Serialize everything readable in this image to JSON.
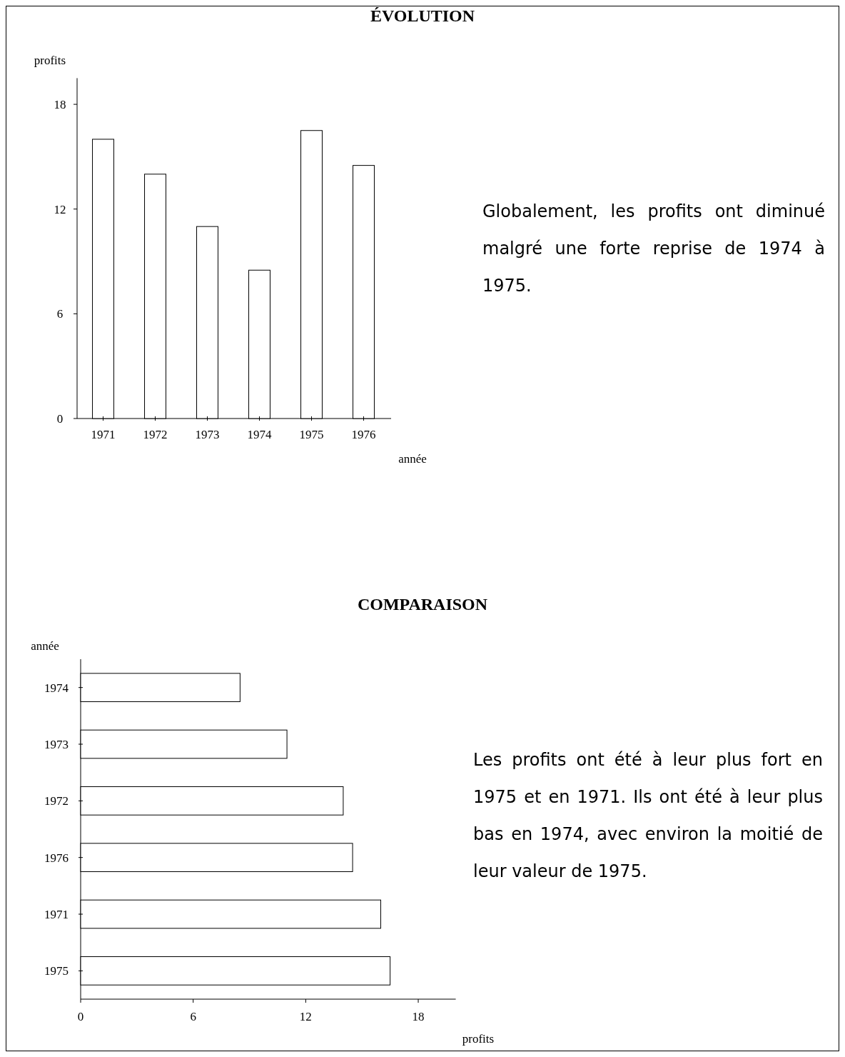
{
  "chart_data": [
    {
      "type": "bar",
      "title": "ÉVOLUTION",
      "xlabel": "année",
      "ylabel": "profits",
      "categories": [
        "1971",
        "1972",
        "1973",
        "1974",
        "1975",
        "1976"
      ],
      "values": [
        16,
        14,
        11,
        8.5,
        16.5,
        14.5
      ],
      "color": "#ffffff",
      "ylim": [
        0,
        19.5
      ],
      "yticks": [
        0,
        6,
        12,
        18
      ],
      "annotations": [
        "Globalement, les profits ont diminué malgré une forte reprise de 1974 à 1975."
      ]
    },
    {
      "type": "bar",
      "orientation": "horizontal",
      "title": "COMPARAISON",
      "xlabel": "profits",
      "ylabel": "année",
      "categories": [
        "1974",
        "1973",
        "1972",
        "1976",
        "1971",
        "1975"
      ],
      "values": [
        8.5,
        11,
        14,
        14.5,
        16,
        16.5
      ],
      "color": "#ffffff",
      "xlim": [
        0,
        20
      ],
      "xticks": [
        0,
        6,
        12,
        18
      ],
      "annotations": [
        "Les profits ont été à leur plus fort en 1975 et en 1971. Ils ont été à leur plus bas en 1974, avec environ la moitié de leur valeur de 1975."
      ]
    }
  ]
}
